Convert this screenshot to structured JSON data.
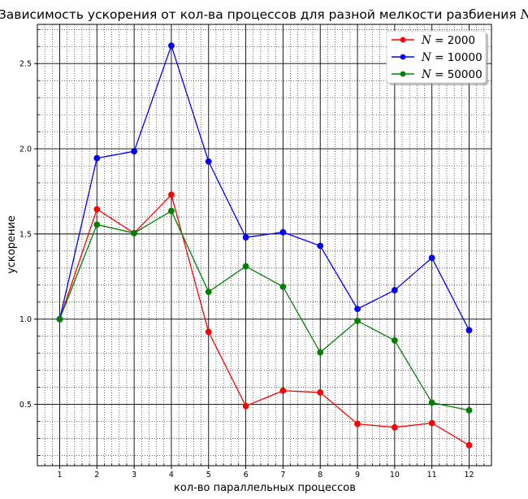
{
  "chart_data": {
    "type": "line",
    "title": "Зависимость ускорения от кол-ва процессов для разной мелкости разбиения",
    "title_var": "N",
    "xlabel": "кол-во параллельных процессов",
    "ylabel": "ускорение",
    "x": [
      1,
      2,
      3,
      4,
      5,
      6,
      7,
      8,
      9,
      10,
      11,
      12
    ],
    "xlim": [
      0.4,
      12.6
    ],
    "ylim": [
      0.14,
      2.73
    ],
    "yticks": [
      "0.5",
      "1.0",
      "1.5",
      "2.0",
      "2.5"
    ],
    "grid": true,
    "legend_position": "top-right",
    "series": [
      {
        "name": "N = 2000",
        "legend_var": "N",
        "legend_value": "2000",
        "color": "#ff0000",
        "values": [
          1.0,
          1.645,
          1.505,
          1.73,
          0.925,
          0.49,
          0.58,
          0.57,
          0.385,
          0.365,
          0.39,
          0.26
        ]
      },
      {
        "name": "N = 10000",
        "legend_var": "N",
        "legend_value": "10000",
        "color": "#0000ff",
        "values": [
          1.0,
          1.945,
          1.985,
          2.605,
          1.925,
          1.48,
          1.51,
          1.43,
          1.06,
          1.17,
          1.36,
          0.935
        ]
      },
      {
        "name": "N = 50000",
        "legend_var": "N",
        "legend_value": "50000",
        "color": "#008000",
        "values": [
          1.0,
          1.555,
          1.505,
          1.635,
          1.16,
          1.31,
          1.19,
          0.805,
          0.99,
          0.875,
          0.51,
          0.465
        ]
      }
    ]
  }
}
